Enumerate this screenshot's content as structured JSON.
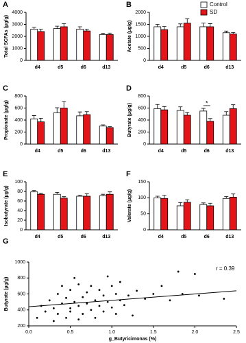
{
  "legend": [
    {
      "name": "Control",
      "color": "#ffffff"
    },
    {
      "name": "SD",
      "color": "#e3151b"
    }
  ],
  "chart_data": [
    {
      "type": "bar",
      "label": "A",
      "ylabel": "Total SCFAs (μg/g)",
      "categories": [
        "d4",
        "d5",
        "d6",
        "d13"
      ],
      "ylim": [
        0,
        4000
      ],
      "yticks": [
        0,
        1000,
        2000,
        3000,
        4000
      ],
      "series": [
        {
          "values": [
            2600,
            2650,
            2600,
            2150
          ],
          "errors": [
            150,
            200,
            200,
            100
          ]
        },
        {
          "values": [
            2400,
            2800,
            2450,
            2150
          ],
          "errors": [
            200,
            250,
            150,
            120
          ]
        }
      ]
    },
    {
      "type": "bar",
      "label": "B",
      "ylabel": "Acetate (μg/g)",
      "categories": [
        "d4",
        "d5",
        "d6",
        "d13"
      ],
      "ylim": [
        0,
        2000
      ],
      "yticks": [
        0,
        500,
        1000,
        1500,
        2000
      ],
      "series": [
        {
          "values": [
            1400,
            1400,
            1400,
            1150
          ],
          "errors": [
            100,
            120,
            150,
            70
          ]
        },
        {
          "values": [
            1280,
            1550,
            1400,
            1100
          ],
          "errors": [
            130,
            180,
            130,
            60
          ]
        }
      ]
    },
    {
      "type": "bar",
      "label": "C",
      "ylabel": "Propionate (μg/g)",
      "categories": [
        "d4",
        "d5",
        "d6",
        "d13"
      ],
      "ylim": [
        0,
        800
      ],
      "yticks": [
        0,
        200,
        400,
        600,
        800
      ],
      "series": [
        {
          "values": [
            420,
            520,
            470,
            300
          ],
          "errors": [
            55,
            85,
            65,
            20
          ]
        },
        {
          "values": [
            370,
            600,
            490,
            275
          ],
          "errors": [
            60,
            110,
            50,
            15
          ]
        }
      ]
    },
    {
      "type": "bar",
      "label": "D",
      "ylabel": "Butyrate (μg/g)",
      "categories": [
        "d4",
        "d5",
        "d6",
        "d13"
      ],
      "ylim": [
        0,
        800
      ],
      "yticks": [
        0,
        200,
        400,
        600,
        800
      ],
      "series": [
        {
          "values": [
            590,
            560,
            550,
            480
          ],
          "errors": [
            70,
            60,
            45,
            60
          ]
        },
        {
          "values": [
            570,
            480,
            380,
            590
          ],
          "errors": [
            55,
            45,
            45,
            65
          ]
        }
      ],
      "significance": [
        {
          "category": "d6",
          "label": "*"
        }
      ]
    },
    {
      "type": "bar",
      "label": "E",
      "ylabel": "Isobutyrate (μg/g)",
      "categories": [
        "d4",
        "d5",
        "d6",
        "d13"
      ],
      "ylim": [
        0,
        100
      ],
      "yticks": [
        0,
        20,
        40,
        60,
        80,
        100
      ],
      "series": [
        {
          "values": [
            79,
            74,
            70,
            71
          ],
          "errors": [
            3,
            4,
            2,
            3
          ]
        },
        {
          "values": [
            74,
            66,
            70,
            74
          ],
          "errors": [
            2,
            3,
            5,
            5
          ]
        }
      ]
    },
    {
      "type": "bar",
      "label": "F",
      "ylabel": "Valerate (μg/g)",
      "categories": [
        "d4",
        "d5",
        "d6",
        "d13"
      ],
      "ylim": [
        0,
        150
      ],
      "yticks": [
        0,
        50,
        100,
        150
      ],
      "series": [
        {
          "values": [
            100,
            75,
            79,
            98
          ],
          "errors": [
            5,
            10,
            5,
            6
          ]
        },
        {
          "values": [
            98,
            86,
            75,
            102
          ],
          "errors": [
            10,
            8,
            8,
            10
          ]
        }
      ]
    },
    {
      "type": "scatter",
      "label": "G",
      "ylabel": "Butyrate (μg/g)",
      "xlabel": "g_Butyricimonas (%)",
      "annotation": "r = 0.39",
      "xlim": [
        0,
        2.5
      ],
      "xticks": [
        {
          "value": 0,
          "label": "0.0"
        },
        {
          "value": 0.5,
          "label": "0.5"
        },
        {
          "value": 1,
          "label": "1.0"
        },
        {
          "value": 1.5,
          "label": "1.5"
        },
        {
          "value": 2,
          "label": "2.0"
        },
        {
          "value": 2.5,
          "label": "2.5"
        }
      ],
      "ylim": [
        200,
        1000
      ],
      "yticks": [
        200,
        400,
        600,
        800,
        1000
      ],
      "x": [
        0.1,
        0.15,
        0.2,
        0.25,
        0.3,
        0.3,
        0.35,
        0.35,
        0.4,
        0.4,
        0.45,
        0.45,
        0.5,
        0.5,
        0.5,
        0.55,
        0.55,
        0.6,
        0.6,
        0.6,
        0.65,
        0.65,
        0.7,
        0.7,
        0.75,
        0.75,
        0.8,
        0.8,
        0.85,
        0.85,
        0.9,
        0.9,
        0.95,
        0.95,
        1.0,
        1.0,
        1.05,
        1.05,
        1.1,
        1.1,
        1.15,
        1.2,
        1.25,
        1.3,
        1.4,
        1.5,
        1.6,
        1.7,
        1.8,
        1.85,
        2.0,
        2.05,
        2.35
      ],
      "y": [
        300,
        450,
        380,
        520,
        260,
        420,
        600,
        350,
        480,
        700,
        300,
        550,
        420,
        650,
        380,
        800,
        500,
        450,
        720,
        280,
        560,
        350,
        620,
        480,
        400,
        700,
        520,
        300,
        650,
        450,
        580,
        380,
        820,
        500,
        430,
        700,
        600,
        350,
        520,
        750,
        460,
        580,
        330,
        640,
        540,
        600,
        700,
        520,
        880,
        600,
        850,
        580,
        540
      ],
      "fit": {
        "x": [
          0,
          2.5
        ],
        "y": [
          440,
          640
        ]
      }
    }
  ]
}
